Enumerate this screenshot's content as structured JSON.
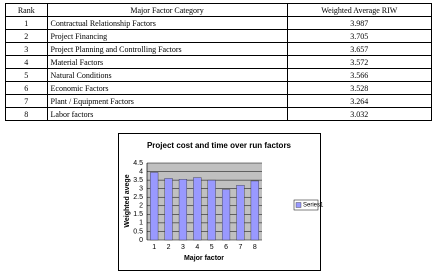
{
  "table": {
    "header": [
      "Rank",
      "Major Factor Category",
      "Weighted Average RIW"
    ],
    "rows": [
      [
        1,
        "Contractual Relationship Factors",
        3.987
      ],
      [
        2,
        "Project Financing",
        3.705
      ],
      [
        3,
        "Project Planning and Controlling Factors",
        3.657
      ],
      [
        4,
        "Material Factors",
        3.572
      ],
      [
        5,
        "Natural Conditions",
        3.566
      ],
      [
        6,
        "Economic Factors",
        3.528
      ],
      [
        7,
        "Plant / Equipment Factors",
        3.264
      ],
      [
        8,
        "Labor factors",
        3.032
      ]
    ]
  },
  "chart_data": {
    "type": "bar",
    "title": "Project cost and time over run factors",
    "x_label": "Major factor",
    "y_label": "Weighted avege",
    "categories": [
      "1",
      "2",
      "3",
      "4",
      "5",
      "6",
      "7",
      "8"
    ],
    "series": [
      {
        "name": "Series1",
        "color": "#9999ff",
        "values": [
          3.95,
          3.6,
          3.55,
          3.65,
          3.5,
          2.95,
          3.2,
          3.45
        ]
      }
    ],
    "ylim": [
      0,
      4.5
    ],
    "yticks": [
      0,
      0.5,
      1,
      1.5,
      2,
      2.5,
      3,
      3.5,
      4,
      4.5
    ],
    "grid": true,
    "legend": "right"
  }
}
